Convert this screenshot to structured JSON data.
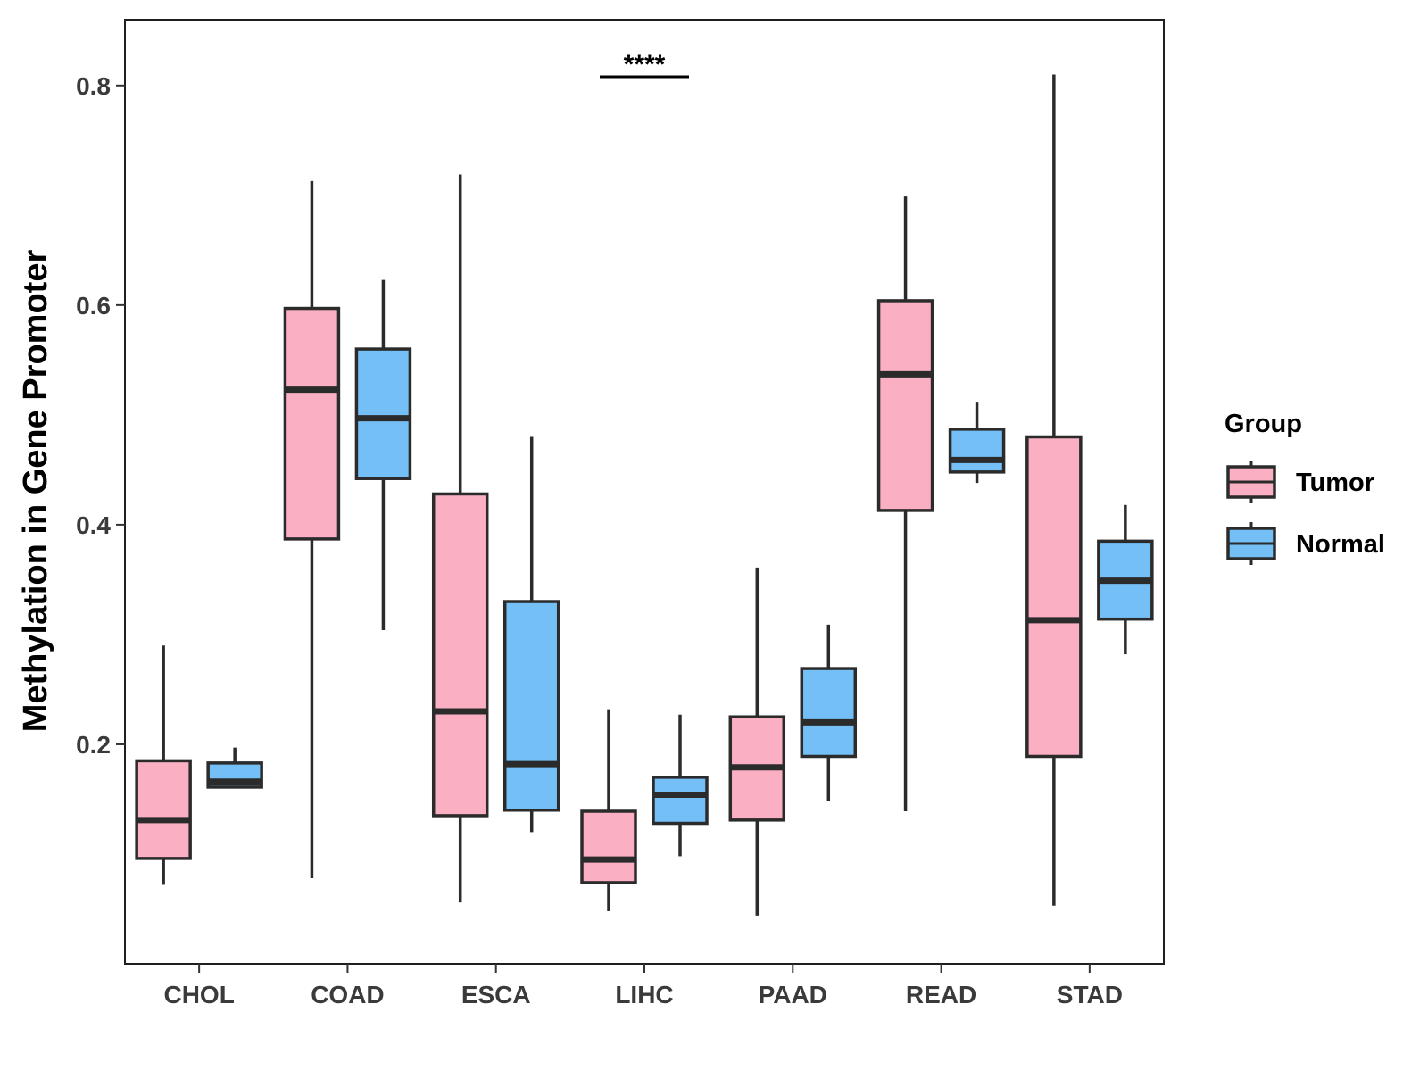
{
  "chart_data": {
    "type": "boxplot",
    "title": "",
    "xlabel": "",
    "ylabel": "Methylation in Gene Promoter",
    "ylim": [
      0.0,
      0.86
    ],
    "yticks": [
      "0.2",
      "0.4",
      "0.6",
      "0.8"
    ],
    "categories": [
      "CHOL",
      "COAD",
      "ESCA",
      "LIHC",
      "PAAD",
      "READ",
      "STAD"
    ],
    "legend": {
      "title": "Group",
      "position": "right"
    },
    "series": [
      {
        "name": "Tumor",
        "color": "#FAB0C2",
        "boxes": [
          {
            "min": 0.072,
            "q1": 0.096,
            "median": 0.131,
            "q3": 0.185,
            "max": 0.29
          },
          {
            "min": 0.078,
            "q1": 0.387,
            "median": 0.523,
            "q3": 0.597,
            "max": 0.713
          },
          {
            "min": 0.056,
            "q1": 0.135,
            "median": 0.23,
            "q3": 0.428,
            "max": 0.719
          },
          {
            "min": 0.048,
            "q1": 0.074,
            "median": 0.095,
            "q3": 0.139,
            "max": 0.232
          },
          {
            "min": 0.044,
            "q1": 0.131,
            "median": 0.179,
            "q3": 0.225,
            "max": 0.361
          },
          {
            "min": 0.139,
            "q1": 0.413,
            "median": 0.537,
            "q3": 0.604,
            "max": 0.699
          },
          {
            "min": 0.053,
            "q1": 0.189,
            "median": 0.313,
            "q3": 0.48,
            "max": 0.81
          }
        ]
      },
      {
        "name": "Normal",
        "color": "#73BFF6",
        "boxes": [
          {
            "min": 0.16,
            "q1": 0.161,
            "median": 0.166,
            "q3": 0.183,
            "max": 0.197
          },
          {
            "min": 0.304,
            "q1": 0.442,
            "median": 0.497,
            "q3": 0.56,
            "max": 0.623
          },
          {
            "min": 0.12,
            "q1": 0.14,
            "median": 0.182,
            "q3": 0.33,
            "max": 0.48
          },
          {
            "min": 0.098,
            "q1": 0.128,
            "median": 0.154,
            "q3": 0.17,
            "max": 0.227
          },
          {
            "min": 0.148,
            "q1": 0.189,
            "median": 0.22,
            "q3": 0.269,
            "max": 0.309
          },
          {
            "min": 0.438,
            "q1": 0.448,
            "median": 0.459,
            "q3": 0.487,
            "max": 0.512
          },
          {
            "min": 0.282,
            "q1": 0.314,
            "median": 0.349,
            "q3": 0.385,
            "max": 0.418
          }
        ]
      }
    ],
    "annotations": [
      {
        "category": "LIHC",
        "y": 0.808,
        "text": "****"
      }
    ]
  }
}
